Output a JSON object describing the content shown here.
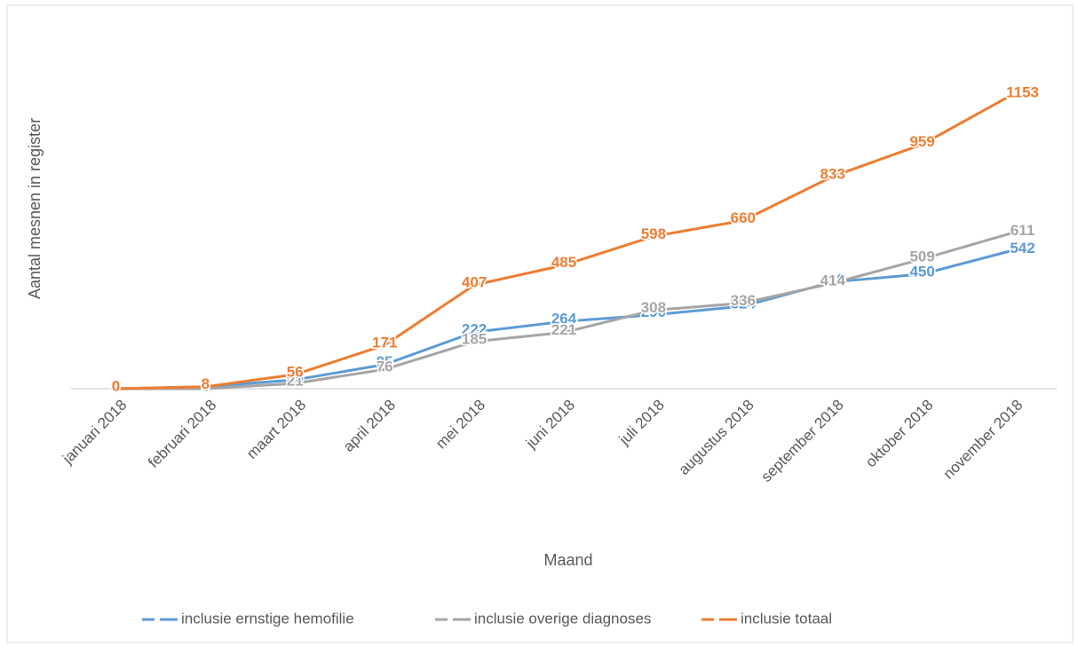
{
  "chart_data": {
    "type": "line",
    "x_label": "Maand",
    "y_label": "Aantal mesnen in register",
    "categories": [
      "januari 2018",
      "februari 2018",
      "maart 2018",
      "april 2018",
      "mei 2018",
      "juni 2018",
      "juli 2018",
      "augustus 2018",
      "september 2018",
      "oktober 2018",
      "november 2018"
    ],
    "series": [
      {
        "name": "inclusie ernstige hemofilie",
        "color": "#5b9bd5",
        "values": [
          0,
          8,
          35,
          95,
          222,
          264,
          290,
          324,
          419,
          450,
          542
        ]
      },
      {
        "name": "inclusie overige diagnoses",
        "color": "#a5a5a5",
        "values": [
          0,
          0,
          21,
          76,
          185,
          221,
          308,
          336,
          414,
          509,
          611
        ]
      },
      {
        "name": "inclusie totaal",
        "color": "#ed7d31",
        "values": [
          0,
          8,
          56,
          171,
          407,
          485,
          598,
          660,
          833,
          959,
          1153
        ]
      }
    ],
    "ylim": [
      0,
      1400
    ],
    "legend": "bottom"
  }
}
